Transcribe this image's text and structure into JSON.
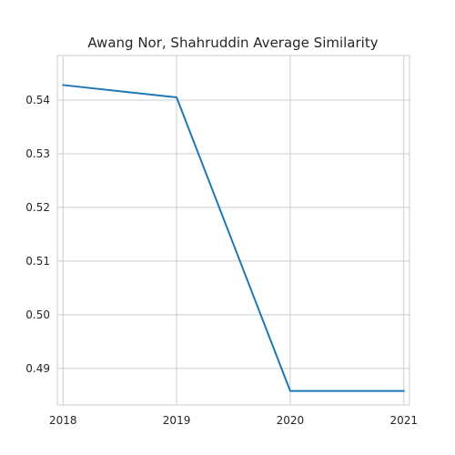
{
  "chart_data": {
    "type": "line",
    "title": "Awang Nor, Shahruddin Average Similarity",
    "xlabel": "",
    "ylabel": "",
    "x": [
      "2018",
      "2019",
      "2020",
      "2021"
    ],
    "series": [
      {
        "values": [
          0.5428,
          0.5405,
          0.4858,
          0.4858
        ],
        "color": "#1f77b4"
      }
    ],
    "xlim": [
      2017.95,
      2021.05
    ],
    "ylim": [
      0.4832,
      0.5483
    ],
    "yticks": [
      {
        "value": 0.49,
        "label": "0.49"
      },
      {
        "value": 0.5,
        "label": "0.50"
      },
      {
        "value": 0.51,
        "label": "0.51"
      },
      {
        "value": 0.52,
        "label": "0.52"
      },
      {
        "value": 0.53,
        "label": "0.53"
      },
      {
        "value": 0.54,
        "label": "0.54"
      }
    ],
    "grid": true,
    "legend": "none"
  }
}
